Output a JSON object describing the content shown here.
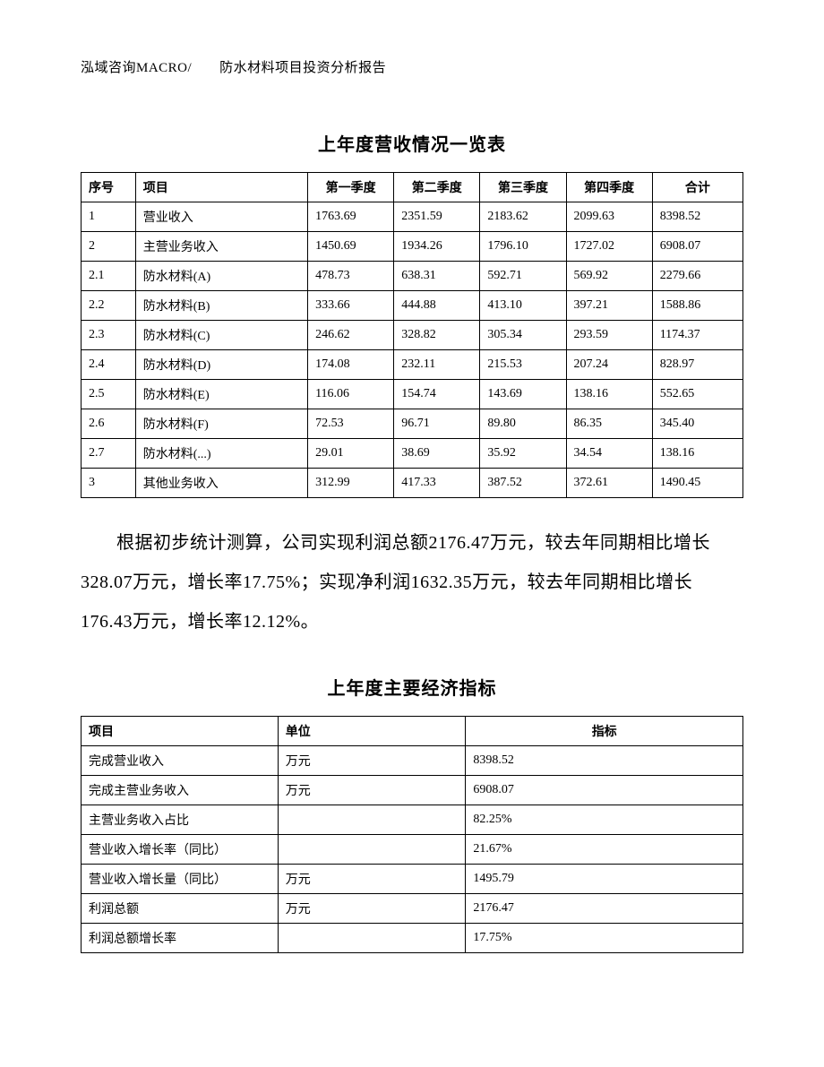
{
  "header": "泓域咨询MACRO/　　防水材料项目投资分析报告",
  "table1": {
    "title": "上年度营收情况一览表",
    "columns": [
      "序号",
      "项目",
      "第一季度",
      "第二季度",
      "第三季度",
      "第四季度",
      "合计"
    ],
    "rows": [
      [
        "1",
        "营业收入",
        "1763.69",
        "2351.59",
        "2183.62",
        "2099.63",
        "8398.52"
      ],
      [
        "2",
        "主营业务收入",
        "1450.69",
        "1934.26",
        "1796.10",
        "1727.02",
        "6908.07"
      ],
      [
        "2.1",
        "防水材料(A)",
        "478.73",
        "638.31",
        "592.71",
        "569.92",
        "2279.66"
      ],
      [
        "2.2",
        "防水材料(B)",
        "333.66",
        "444.88",
        "413.10",
        "397.21",
        "1588.86"
      ],
      [
        "2.3",
        "防水材料(C)",
        "246.62",
        "328.82",
        "305.34",
        "293.59",
        "1174.37"
      ],
      [
        "2.4",
        "防水材料(D)",
        "174.08",
        "232.11",
        "215.53",
        "207.24",
        "828.97"
      ],
      [
        "2.5",
        "防水材料(E)",
        "116.06",
        "154.74",
        "143.69",
        "138.16",
        "552.65"
      ],
      [
        "2.6",
        "防水材料(F)",
        "72.53",
        "96.71",
        "89.80",
        "86.35",
        "345.40"
      ],
      [
        "2.7",
        "防水材料(...)",
        "29.01",
        "38.69",
        "35.92",
        "34.54",
        "138.16"
      ],
      [
        "3",
        "其他业务收入",
        "312.99",
        "417.33",
        "387.52",
        "372.61",
        "1490.45"
      ]
    ]
  },
  "paragraph": "根据初步统计测算，公司实现利润总额2176.47万元，较去年同期相比增长328.07万元，增长率17.75%；实现净利润1632.35万元，较去年同期相比增长176.43万元，增长率12.12%。",
  "table2": {
    "title": "上年度主要经济指标",
    "columns": [
      "项目",
      "单位",
      "指标"
    ],
    "rows": [
      [
        "完成营业收入",
        "万元",
        "8398.52"
      ],
      [
        "完成主营业务收入",
        "万元",
        "6908.07"
      ],
      [
        "主营业务收入占比",
        "",
        "82.25%"
      ],
      [
        "营业收入增长率（同比）",
        "",
        "21.67%"
      ],
      [
        "营业收入增长量（同比）",
        "万元",
        "1495.79"
      ],
      [
        "利润总额",
        "万元",
        "2176.47"
      ],
      [
        "利润总额增长率",
        "",
        "17.75%"
      ]
    ]
  }
}
